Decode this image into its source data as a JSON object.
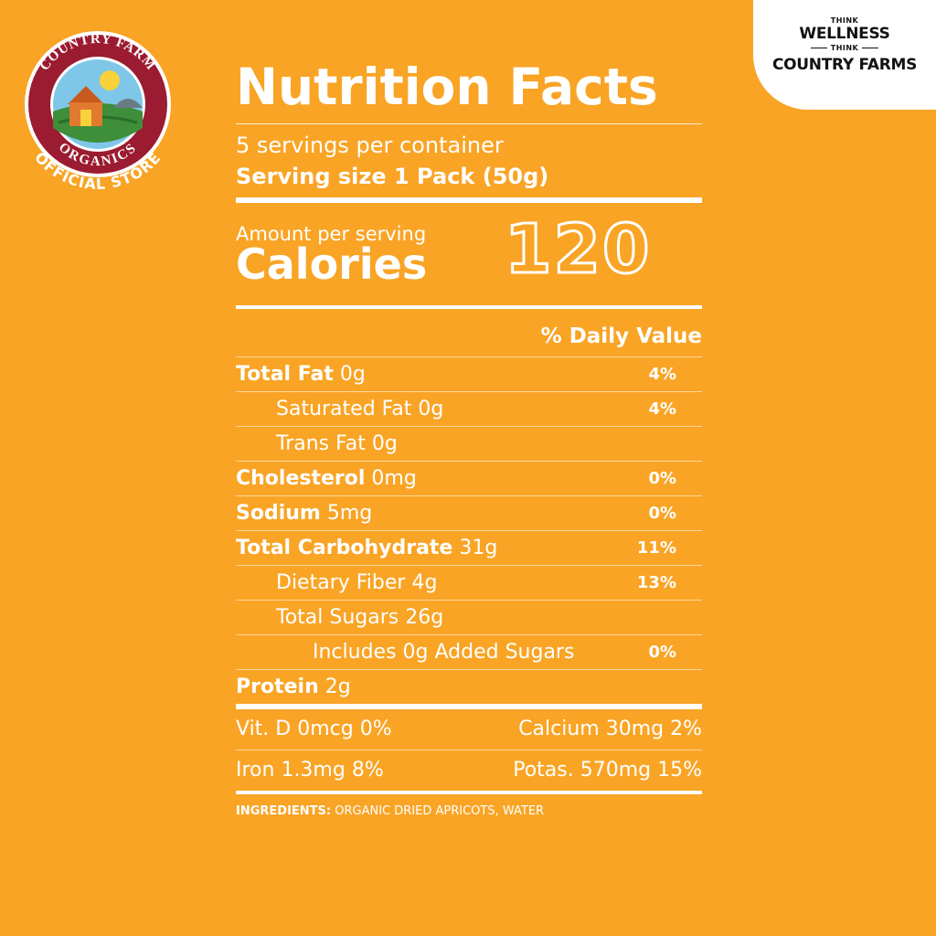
{
  "badge": {
    "top_text": "COUNTRY FARM",
    "bottom_text": "ORGANICS",
    "store_text": "OFFICIAL STORE",
    "colors": {
      "ring": "#9B1B30",
      "inner": "#ffffff",
      "barn": "#E07A2E",
      "field": "#3E8E3A"
    }
  },
  "corner_tag": {
    "line1": "THINK",
    "line2": "WELLNESS",
    "line3": "THINK",
    "line4": "COUNTRY FARMS"
  },
  "label": {
    "title": "Nutrition Facts",
    "servings": "5 servings per container",
    "serving_size": "Serving size 1 Pack (50g)",
    "amount_per_serving": "Amount per serving",
    "calories_label": "Calories",
    "calories_value": "120",
    "dv_header": "% Daily Value",
    "rows": [
      {
        "name": "Total Fat",
        "amount": "0g",
        "dv": "4%"
      },
      {
        "name": "Saturated Fat",
        "amount": "0g",
        "dv": "4%"
      },
      {
        "name": "Trans Fat",
        "amount": "0g",
        "dv": ""
      },
      {
        "name": "Cholesterol",
        "amount": "0mg",
        "dv": "0%"
      },
      {
        "name": "Sodium",
        "amount": "5mg",
        "dv": "0%"
      },
      {
        "name": "Total Carbohydrate",
        "amount": "31g",
        "dv": "11%"
      },
      {
        "name": "Dietary Fiber",
        "amount": "4g",
        "dv": "13%"
      },
      {
        "name": "Total Sugars",
        "amount": "26g",
        "dv": ""
      },
      {
        "name": "Includes 0g Added Sugars",
        "amount": "",
        "dv": "0%"
      },
      {
        "name": "Protein",
        "amount": "2g",
        "dv": ""
      }
    ],
    "vitamins": {
      "vit_d": "Vit. D 0mcg 0%",
      "calcium": "Calcium 30mg 2%",
      "iron": "Iron 1.3mg 8%",
      "potassium": "Potas. 570mg 15%"
    },
    "ingredients_label": "INGREDIENTS:",
    "ingredients_text": "ORGANIC DRIED APRICOTS, WATER"
  },
  "colors": {
    "background": "#F9A425",
    "text": "#ffffff"
  }
}
